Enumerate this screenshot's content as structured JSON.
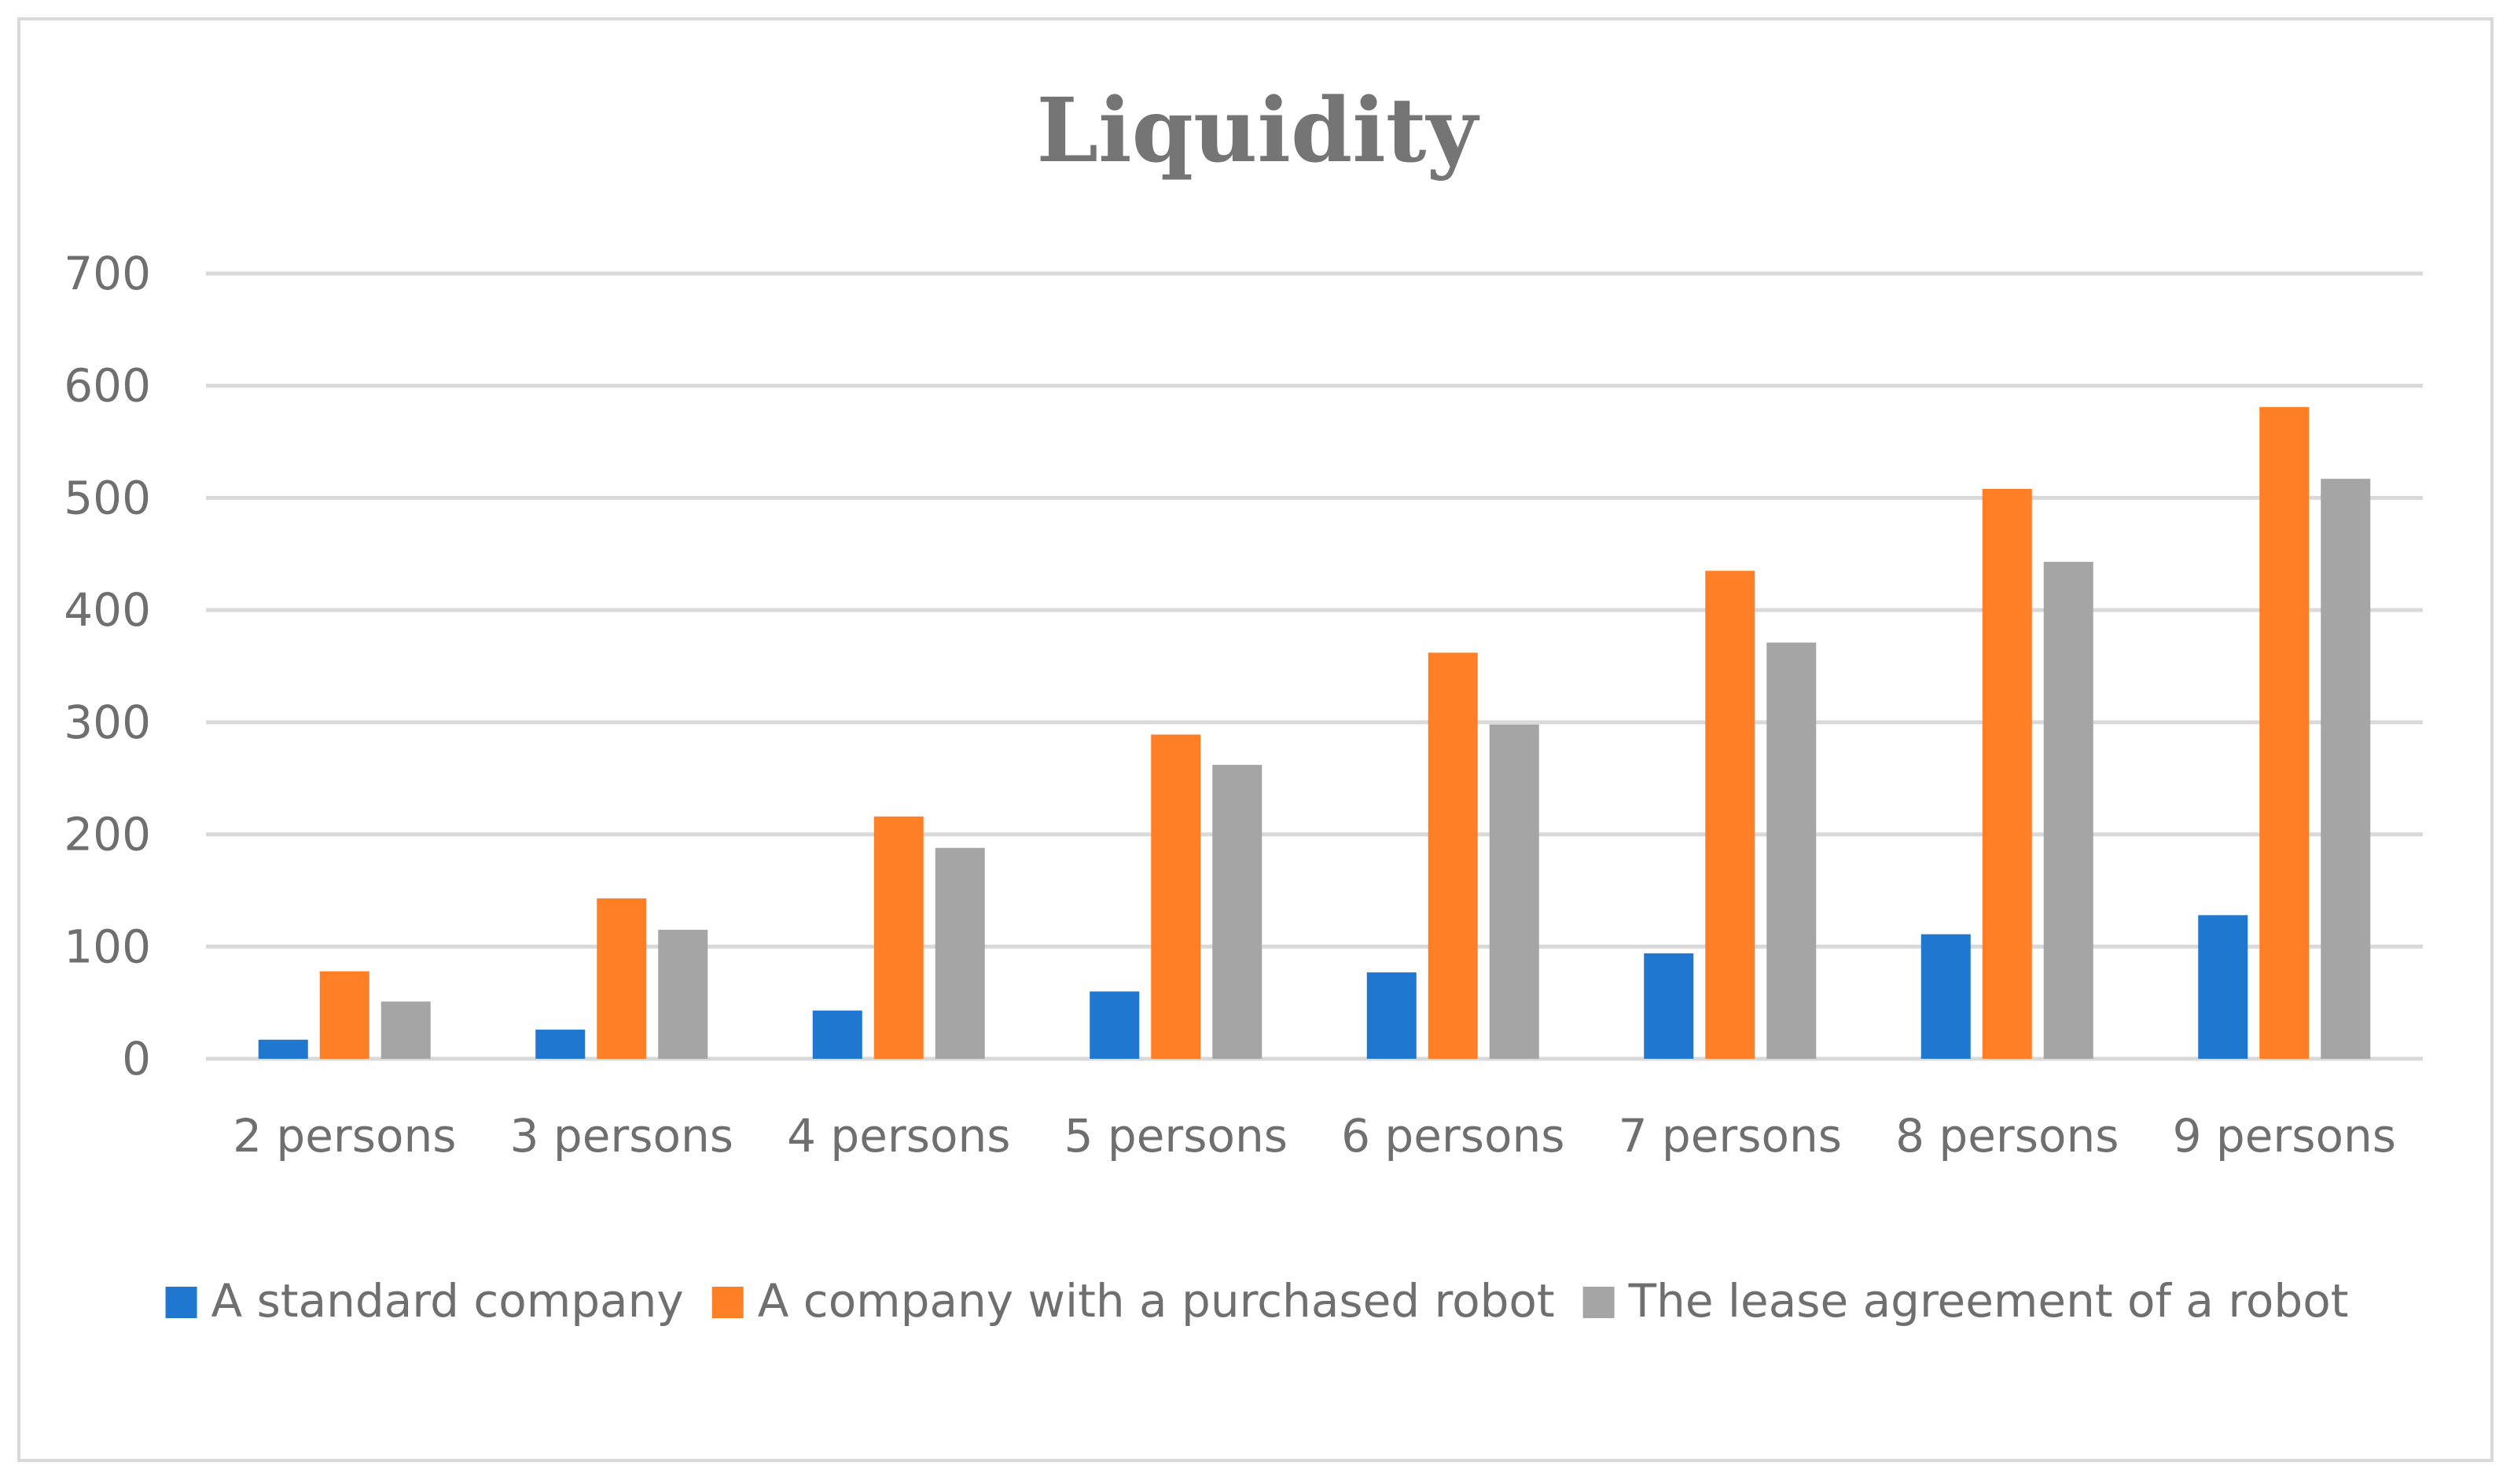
{
  "chart_data": {
    "type": "bar",
    "title": "Liquidity",
    "xlabel": "",
    "ylabel": "",
    "ylim": [
      0,
      700
    ],
    "yticks": [
      0,
      100,
      200,
      300,
      400,
      500,
      600,
      700
    ],
    "grid": true,
    "legend_position": "bottom",
    "categories": [
      "2 persons",
      "3 persons",
      "4 persons",
      "5 persons",
      "6 persons",
      "7 persons",
      "8 persons",
      "9 persons"
    ],
    "series": [
      {
        "name": "A standard company",
        "color": "#1f77d0",
        "values": [
          17,
          26,
          43,
          60,
          77,
          94,
          111,
          128
        ]
      },
      {
        "name": "A company with a purchased robot",
        "color": "#ff7f27",
        "values": [
          78,
          143,
          216,
          289,
          362,
          435,
          508,
          581
        ]
      },
      {
        "name": "The lease agreement of a robot",
        "color": "#a5a5a5",
        "values": [
          51,
          115,
          188,
          262,
          298,
          371,
          443,
          517
        ]
      }
    ]
  }
}
